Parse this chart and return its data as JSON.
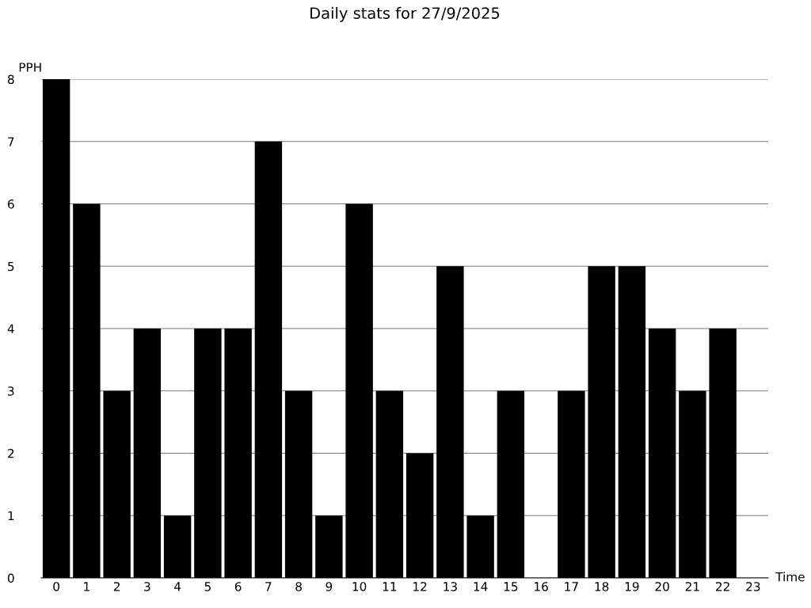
{
  "chart_data": {
    "type": "bar",
    "title": "Daily stats for 27/9/2025",
    "xlabel": "Time",
    "ylabel": "PPH",
    "categories": [
      "0",
      "1",
      "2",
      "3",
      "4",
      "5",
      "6",
      "7",
      "8",
      "9",
      "10",
      "11",
      "12",
      "13",
      "14",
      "15",
      "16",
      "17",
      "18",
      "19",
      "20",
      "21",
      "22",
      "23"
    ],
    "values": [
      8,
      6,
      3,
      4,
      1,
      4,
      4,
      7,
      3,
      1,
      6,
      3,
      2,
      5,
      1,
      3,
      0,
      3,
      5,
      5,
      4,
      3,
      4,
      0
    ],
    "color": "#000000",
    "ylim": [
      0,
      8
    ],
    "yticks": [
      0,
      1,
      2,
      3,
      4,
      5,
      6,
      7,
      8
    ],
    "grid": "y"
  }
}
